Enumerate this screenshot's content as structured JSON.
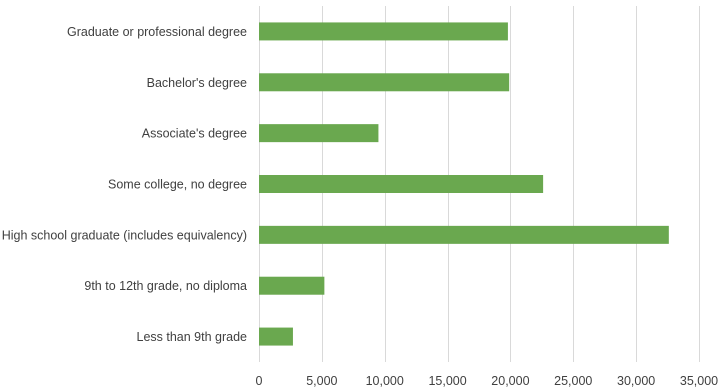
{
  "chart_data": {
    "type": "bar",
    "orientation": "horizontal",
    "title": "",
    "xlabel": "",
    "ylabel": "",
    "categories": [
      "Graduate or professional degree",
      "Bachelor's degree",
      "Associate's degree",
      "Some college, no degree",
      "High school graduate (includes equivalency)",
      "9th to 12th grade, no diploma",
      "Less than 9th grade"
    ],
    "values": [
      19800,
      19900,
      9500,
      22600,
      32600,
      5200,
      2700
    ],
    "xlim": [
      0,
      35000
    ],
    "xticks": [
      0,
      5000,
      10000,
      15000,
      20000,
      25000,
      30000,
      35000
    ],
    "xtick_labels": [
      "0",
      "5,000",
      "10,000",
      "15,000",
      "20,000",
      "25,000",
      "30,000",
      "35,000"
    ],
    "grid": "vertical",
    "legend": "none",
    "bar_color": "#6aa84f"
  }
}
